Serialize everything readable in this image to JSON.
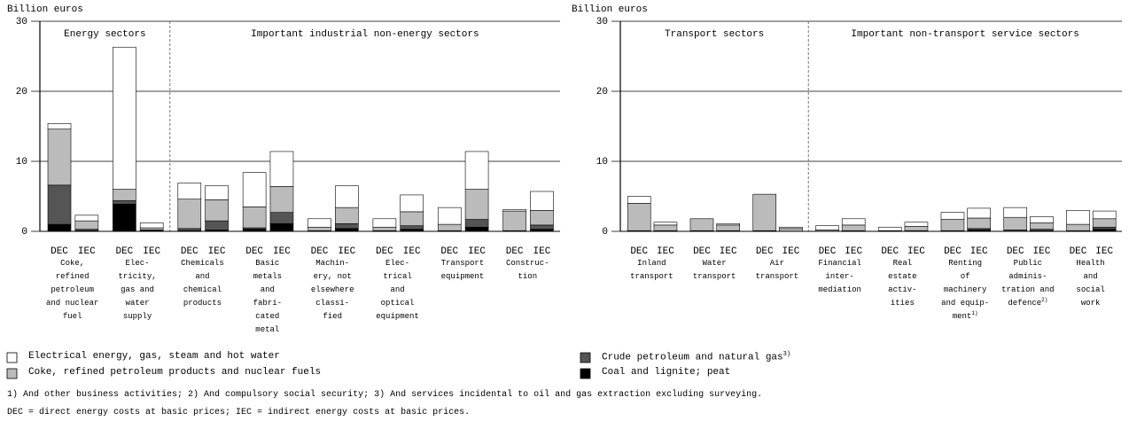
{
  "chart_data": [
    {
      "type": "bar",
      "stacked": true,
      "y_label": "Billion euros",
      "ylim": [
        0,
        30
      ],
      "yticks": [
        0,
        10,
        20,
        30
      ],
      "grid": true,
      "sub_labels": [
        "DEC",
        "IEC"
      ],
      "groups": [
        {
          "title": "Energy sectors",
          "categories": [
            "Coke,\nrefined\npetroleum\nand nuclear\nfuel",
            "Elec-\ntricity,\ngas and\nwater\nsupply"
          ],
          "category_notes": [
            null,
            null
          ]
        },
        {
          "title": "Important industrial non-energy sectors",
          "categories": [
            "Chemicals\nand\nchemical\nproducts",
            "Basic\nmetals\nand\nfabri-\ncated\nmetal",
            "Machin-\nery, not\nelsewhere\nclassi-\nfied",
            "Elec-\ntrical\nand\noptical\nequipment",
            "Transport\nequipment",
            "Construc-\ntion"
          ],
          "category_notes": [
            null,
            null,
            null,
            null,
            null,
            null
          ]
        }
      ],
      "series": [
        {
          "name": "Coal and lignite; peat",
          "color": "#000000",
          "values": [
            [
              1.0,
              0.1
            ],
            [
              3.9,
              0.1
            ],
            [
              0.1,
              0.2
            ],
            [
              0.3,
              1.1
            ],
            [
              0,
              0.4
            ],
            [
              0,
              0.3
            ],
            [
              0,
              0.6
            ],
            [
              0,
              0.3
            ]
          ]
        },
        {
          "name": "Crude petroleum and natural gas",
          "note": "3)",
          "color": "#555555",
          "values": [
            [
              5.6,
              0.2
            ],
            [
              0.5,
              0.1
            ],
            [
              0.3,
              1.3
            ],
            [
              0.2,
              1.6
            ],
            [
              0.1,
              0.7
            ],
            [
              0.1,
              0.5
            ],
            [
              0.1,
              1.1
            ],
            [
              0.1,
              0.6
            ]
          ]
        },
        {
          "name": "Coke, refined petroleum products and nuclear fuels",
          "color": "#bbbbbb",
          "values": [
            [
              8.0,
              1.2
            ],
            [
              1.6,
              0.3
            ],
            [
              4.2,
              3.0
            ],
            [
              3.0,
              3.7
            ],
            [
              0.5,
              2.3
            ],
            [
              0.5,
              2.0
            ],
            [
              0.9,
              4.3
            ],
            [
              2.8,
              2.1
            ]
          ]
        },
        {
          "name": "Electrical energy, gas, steam and hot water",
          "color": "#ffffff",
          "values": [
            [
              0.8,
              0.8
            ],
            [
              20.3,
              0.7
            ],
            [
              2.3,
              2.0
            ],
            [
              4.9,
              5.0
            ],
            [
              1.2,
              3.1
            ],
            [
              1.2,
              2.4
            ],
            [
              2.4,
              5.4
            ],
            [
              0.2,
              2.7
            ]
          ]
        }
      ]
    },
    {
      "type": "bar",
      "stacked": true,
      "y_label": "Billion euros",
      "ylim": [
        0,
        30
      ],
      "yticks": [
        0,
        10,
        20,
        30
      ],
      "grid": true,
      "sub_labels": [
        "DEC",
        "IEC"
      ],
      "groups": [
        {
          "title": "Transport sectors",
          "categories": [
            "Inland\ntransport",
            "Water\ntransport",
            "Air\ntransport"
          ],
          "category_notes": [
            null,
            null,
            null
          ]
        },
        {
          "title": "Important non-transport service sectors",
          "categories": [
            "Financial\ninter-\nmediation",
            "Real\nestate\nactiv-\nities",
            "Renting\nof\nmachinery\nand equip-\nment",
            "Public\nadminis-\ntration and\ndefence",
            "Health\nand\nsocial\nwork"
          ],
          "category_notes": [
            null,
            null,
            "1)",
            "2)",
            null
          ]
        }
      ],
      "series": [
        {
          "name": "Coal and lignite; peat",
          "color": "#000000",
          "values": [
            [
              0,
              0
            ],
            [
              0,
              0
            ],
            [
              0,
              0
            ],
            [
              0,
              0
            ],
            [
              0,
              0
            ],
            [
              0,
              0.2
            ],
            [
              0,
              0.1
            ],
            [
              0,
              0.3
            ]
          ]
        },
        {
          "name": "Crude petroleum and natural gas",
          "note": "3)",
          "color": "#555555",
          "values": [
            [
              0.1,
              0.1
            ],
            [
              0.1,
              0.1
            ],
            [
              0.1,
              0
            ],
            [
              0,
              0.1
            ],
            [
              0,
              0.1
            ],
            [
              0.1,
              0.2
            ],
            [
              0.2,
              0.2
            ],
            [
              0.1,
              0.3
            ]
          ]
        },
        {
          "name": "Coke, refined petroleum products and nuclear fuels",
          "color": "#bbbbbb",
          "values": [
            [
              3.9,
              0.8
            ],
            [
              1.7,
              0.8
            ],
            [
              5.2,
              0.4
            ],
            [
              0.2,
              0.8
            ],
            [
              0.1,
              0.6
            ],
            [
              1.6,
              1.5
            ],
            [
              1.8,
              0.9
            ],
            [
              0.9,
              1.2
            ]
          ]
        },
        {
          "name": "Electrical energy, gas, steam and hot water",
          "color": "#ffffff",
          "values": [
            [
              1.0,
              0.4
            ],
            [
              0,
              0.2
            ],
            [
              0,
              0.2
            ],
            [
              0.6,
              0.9
            ],
            [
              0.5,
              0.6
            ],
            [
              1.0,
              1.4
            ],
            [
              1.4,
              0.9
            ],
            [
              2.0,
              1.1
            ]
          ]
        }
      ]
    }
  ],
  "notes": [
    "1) And other business activities; 2) And compulsory social security; 3) And services incidental to oil and gas extraction excluding surveying.",
    "DEC = direct energy costs at basic prices; IEC = indirect energy costs at basic prices."
  ]
}
